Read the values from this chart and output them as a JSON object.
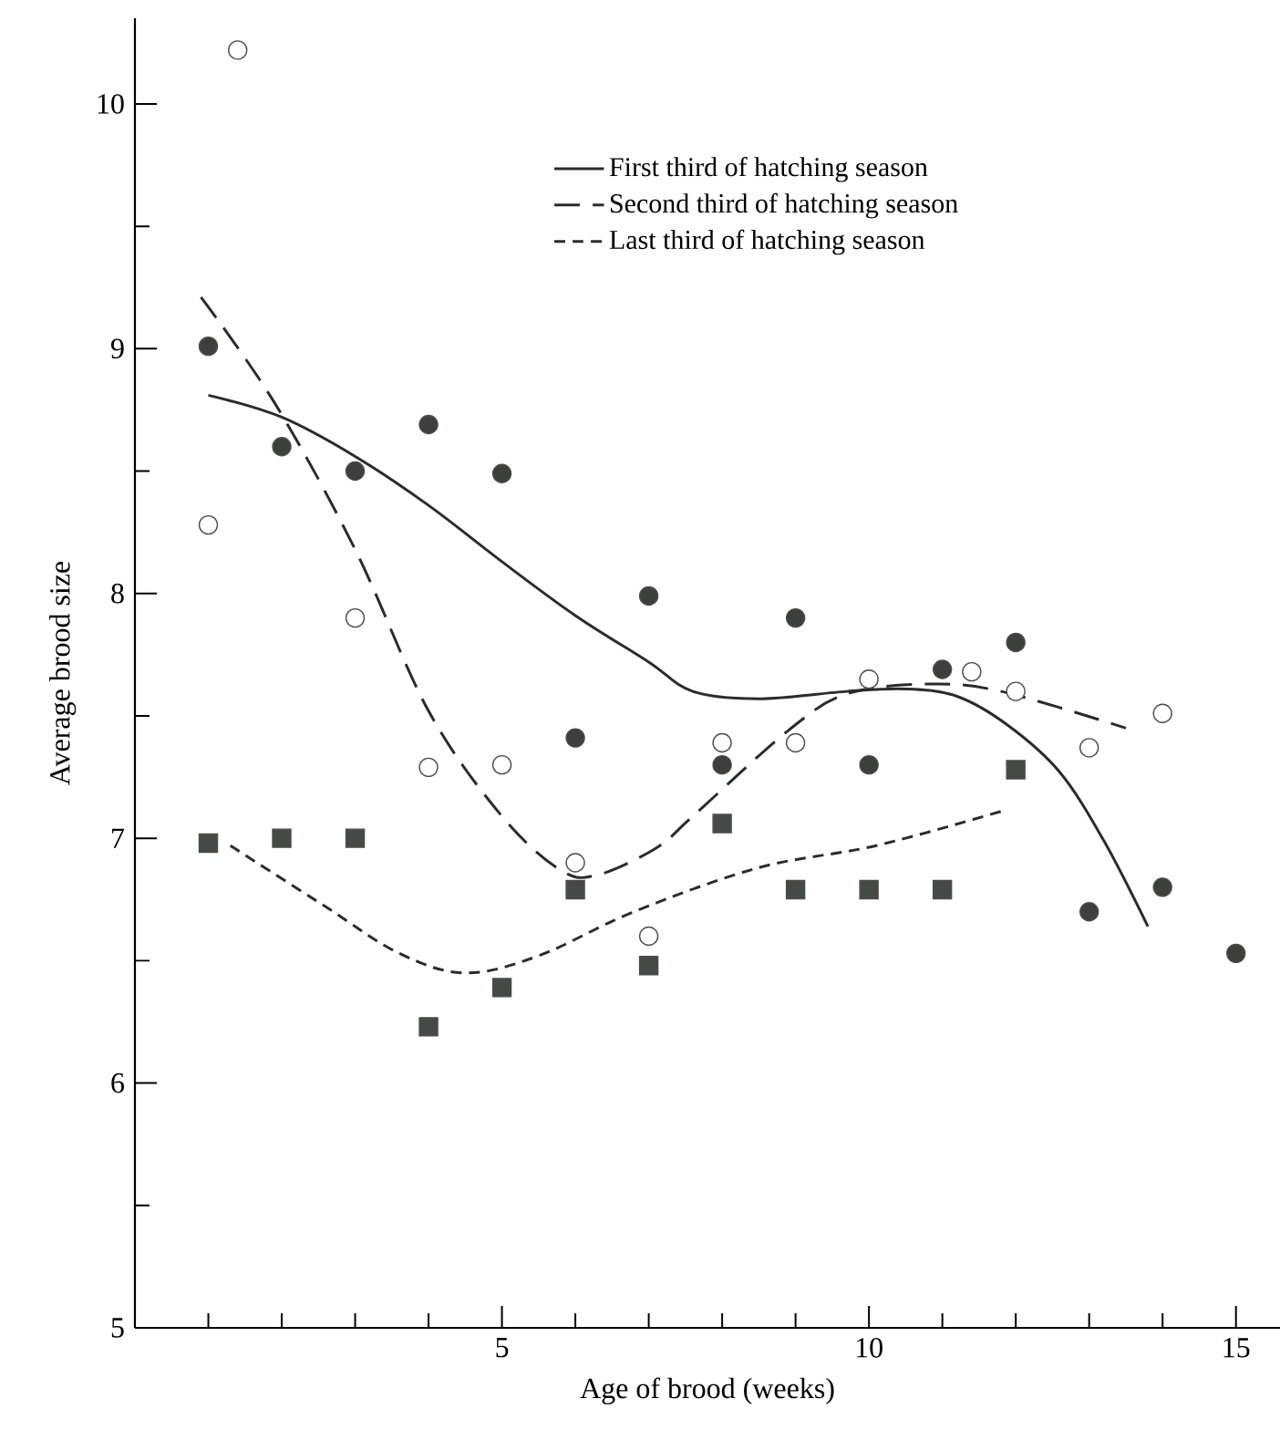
{
  "chart_data": {
    "type": "scatter",
    "xlabel": "Age of brood (weeks)",
    "ylabel": "Average brood size",
    "xlim": [
      0,
      15.6
    ],
    "ylim": [
      5,
      10.35
    ],
    "xticks": [
      {
        "value": 1,
        "label": null
      },
      {
        "value": 2,
        "label": null
      },
      {
        "value": 3,
        "label": null
      },
      {
        "value": 4,
        "label": null
      },
      5,
      {
        "value": 6,
        "label": null
      },
      {
        "value": 7,
        "label": null
      },
      {
        "value": 8,
        "label": null
      },
      {
        "value": 9,
        "label": null
      },
      10,
      {
        "value": 11,
        "label": null
      },
      {
        "value": 12,
        "label": null
      },
      {
        "value": 13,
        "label": null
      },
      {
        "value": 14,
        "label": null
      },
      15
    ],
    "yticks": [
      5,
      {
        "value": 5.5,
        "label": null
      },
      6,
      {
        "value": 6.5,
        "label": null
      },
      7,
      {
        "value": 7.5,
        "label": null
      },
      8,
      {
        "value": 8.5,
        "label": null
      },
      9,
      {
        "value": 9.5,
        "label": null
      },
      10
    ],
    "legend": "top right",
    "series": [
      {
        "name": "First third of hatching season",
        "type": "line",
        "line_style": "solid",
        "color": "#2b2b2b",
        "x": [
          1,
          2,
          3,
          4,
          5,
          6,
          7,
          7.6,
          8.5,
          9.7,
          10.5,
          11.2,
          11.9,
          12.6,
          13.2,
          13.8
        ],
        "values": [
          8.81,
          8.72,
          8.56,
          8.36,
          8.13,
          7.91,
          7.72,
          7.6,
          7.57,
          7.6,
          7.61,
          7.58,
          7.46,
          7.27,
          6.99,
          6.64
        ]
      },
      {
        "name": "Second third of hatching season",
        "type": "line",
        "line_style": "dashed",
        "color": "#2b2b2b",
        "x": [
          0.9,
          1.9,
          3,
          4,
          5,
          5.8,
          6.3,
          7.1,
          7.6,
          8.9,
          9.7,
          10.8,
          11.8,
          13.5
        ],
        "values": [
          9.21,
          8.78,
          8.18,
          7.52,
          7.09,
          6.87,
          6.85,
          6.96,
          7.09,
          7.44,
          7.59,
          7.63,
          7.6,
          7.45
        ]
      },
      {
        "name": "Last third of hatching season",
        "type": "line",
        "line_style": "dashed",
        "color": "#2b2b2b",
        "x": [
          1.3,
          2.6,
          3.6,
          4.5,
          5.5,
          6.8,
          8.5,
          10.1,
          11.8
        ],
        "values": [
          6.97,
          6.72,
          6.53,
          6.45,
          6.52,
          6.7,
          6.88,
          6.97,
          7.11
        ]
      },
      {
        "marker": "circle",
        "color": "#3c3f3c",
        "x": [
          1,
          2,
          3,
          4,
          5,
          6,
          7,
          8,
          9,
          10,
          11,
          12,
          13,
          14,
          15
        ],
        "values": [
          9.01,
          8.6,
          8.5,
          8.69,
          8.49,
          7.41,
          7.99,
          7.3,
          7.9,
          7.3,
          7.69,
          7.8,
          6.7,
          6.8,
          6.53
        ]
      },
      {
        "marker": "circle",
        "color": "#ffffff",
        "x": [
          1,
          1.4,
          3,
          4,
          5,
          6,
          7,
          8,
          9,
          10,
          11.4,
          12,
          13,
          14
        ],
        "values": [
          8.28,
          10.22,
          7.9,
          7.29,
          7.3,
          6.9,
          6.6,
          7.39,
          7.39,
          7.65,
          7.68,
          7.6,
          7.37,
          7.51
        ]
      },
      {
        "marker": "square",
        "color": "#464a46",
        "x": [
          1,
          2,
          3,
          4,
          5,
          6,
          7,
          8,
          9,
          10,
          11,
          12
        ],
        "values": [
          6.98,
          7.0,
          7.0,
          6.23,
          6.39,
          6.79,
          6.48,
          7.06,
          6.79,
          6.79,
          6.79,
          7.28
        ]
      }
    ]
  }
}
